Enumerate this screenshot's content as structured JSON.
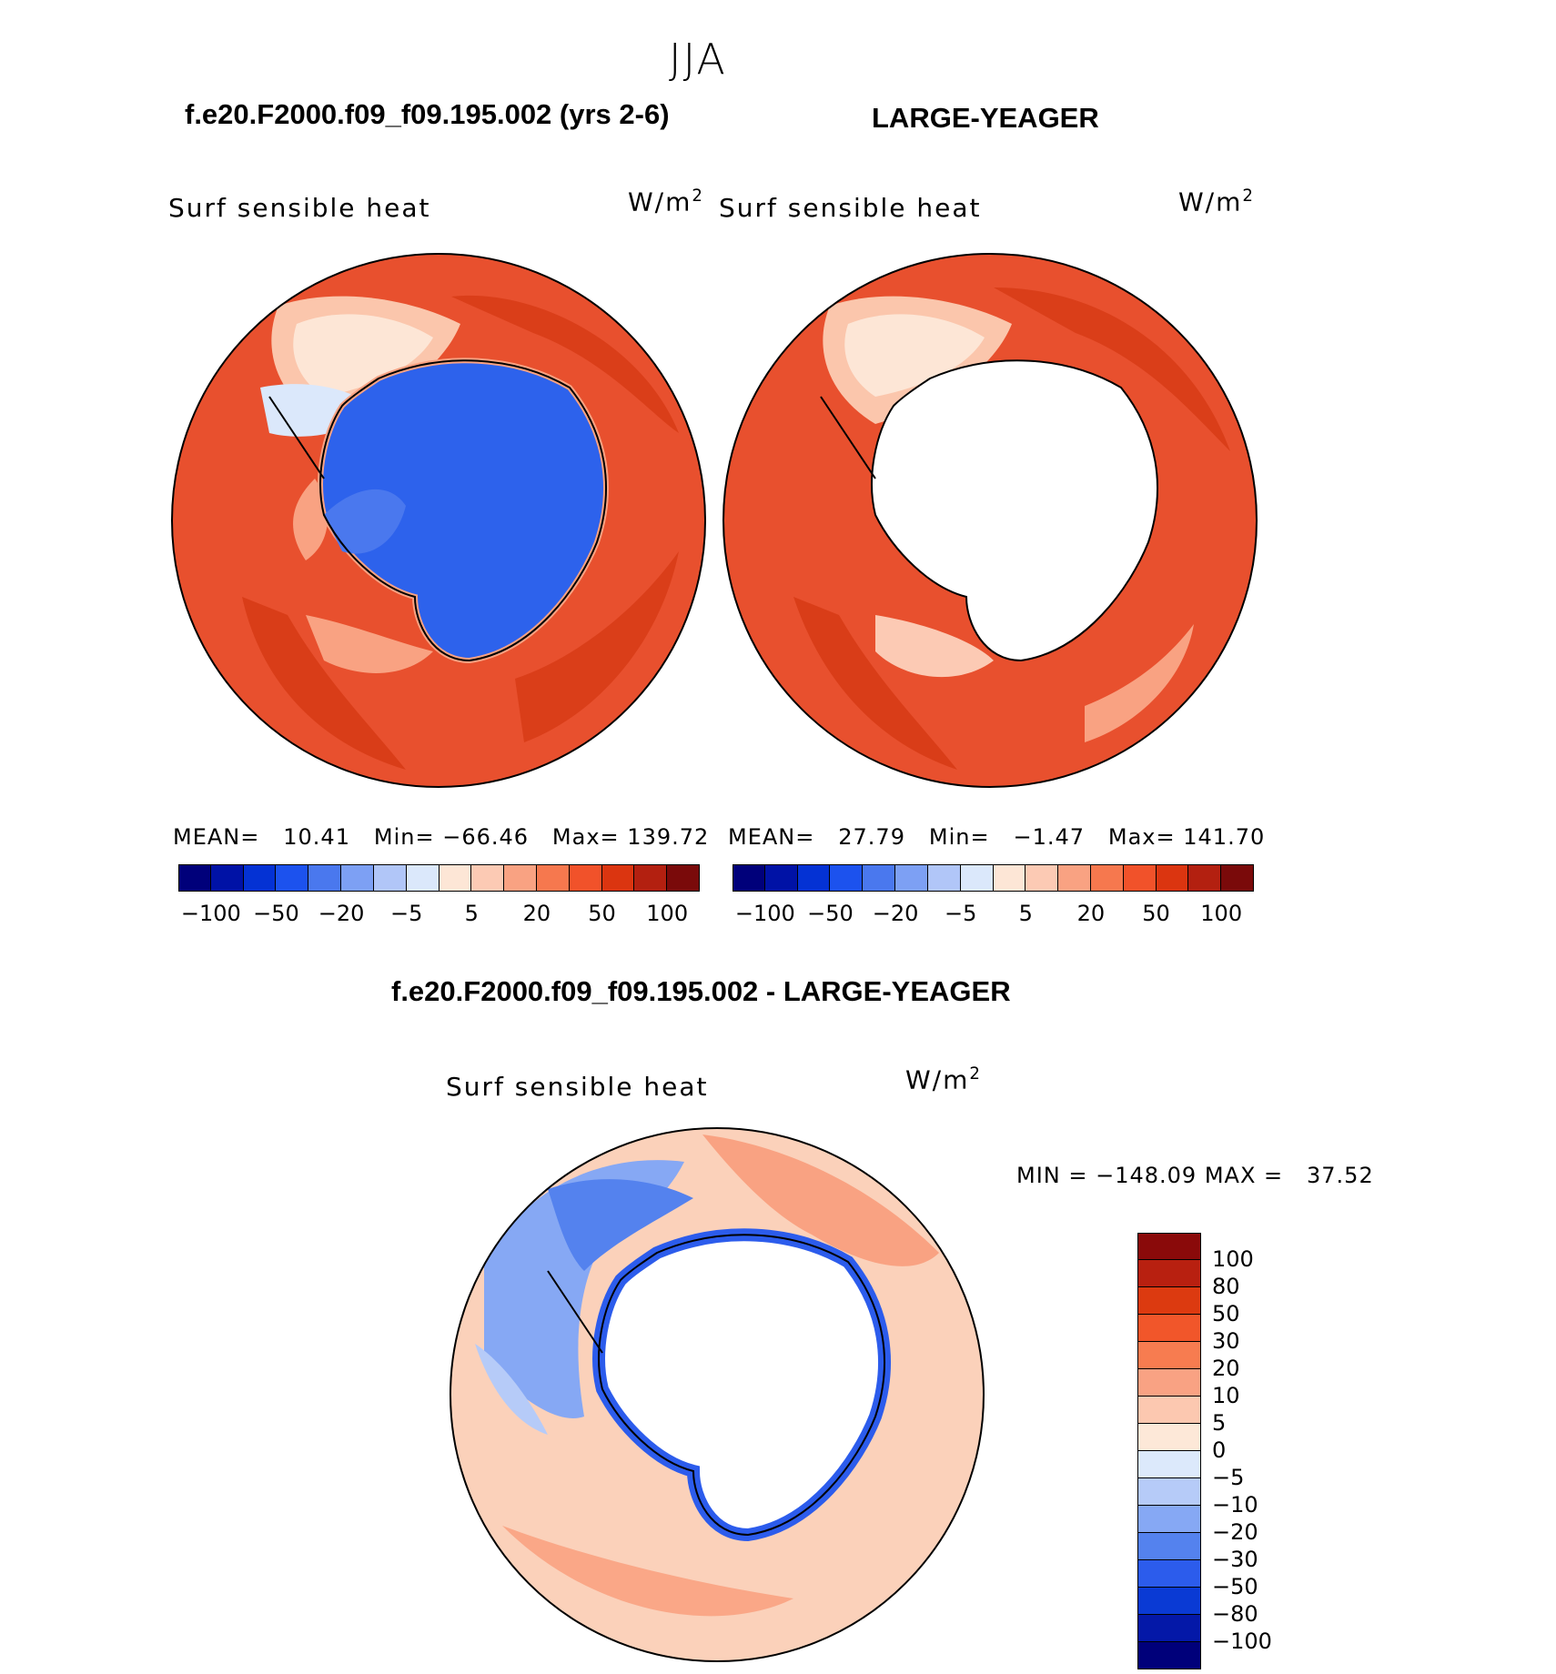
{
  "title": "JJA",
  "panels": [
    {
      "case": "f.e20.F2000.f09_f09.195.002 (yrs 2-6)",
      "variable": "Surf sensible heat",
      "units_base": "W/m",
      "units_exp": "2",
      "stats": {
        "mean_label": "MEAN=",
        "mean": "10.41",
        "min_label": "Min=",
        "min": "−66.46",
        "max_label": "Max=",
        "max": "139.72"
      },
      "land": "low",
      "colors": {
        "ocean": "#e8502e",
        "land": "#2d62ec"
      }
    },
    {
      "case": "LARGE-YEAGER",
      "variable": "Surf sensible heat",
      "units_base": "W/m",
      "units_exp": "2",
      "stats": {
        "mean_label": "MEAN=",
        "mean": "27.79",
        "min_label": "Min=",
        "min": "−1.47",
        "max_label": "Max=",
        "max": "141.70"
      },
      "land": "missing",
      "colors": {
        "ocean": "#e8502e",
        "land": "#ffffff"
      }
    }
  ],
  "colorbar_abs": {
    "colors": [
      "#00007a",
      "#0012a6",
      "#0432d4",
      "#1c52ee",
      "#4a78ee",
      "#7da0f4",
      "#b1c6f8",
      "#dbe8fb",
      "#fde6d6",
      "#fccab4",
      "#f9a282",
      "#f6784e",
      "#f1522a",
      "#db3510",
      "#b32010",
      "#7a0a0a"
    ],
    "ticks": [
      "−100",
      "−50",
      "−20",
      "−5",
      "5",
      "20",
      "50",
      "100"
    ]
  },
  "diff": {
    "title": "f.e20.F2000.f09_f09.195.002 - LARGE-YEAGER",
    "variable": "Surf sensible heat",
    "units_base": "W/m",
    "units_exp": "2",
    "minmax": "MIN = −148.09 MAX =   37.52",
    "colorbar": {
      "colors": [
        "#8a0a0a",
        "#b82010",
        "#dc3a10",
        "#f1562a",
        "#f77c50",
        "#f9a283",
        "#fcc8b0",
        "#fde8d8",
        "#dce9fb",
        "#b6cbf8",
        "#86a8f4",
        "#5482ee",
        "#2c5cec",
        "#0a3ad4",
        "#0418a8",
        "#00007a"
      ],
      "ticks": [
        "100",
        "80",
        "50",
        "30",
        "20",
        "10",
        "5",
        "0",
        "−5",
        "−10",
        "−20",
        "−30",
        "−50",
        "−80",
        "−100"
      ]
    },
    "colors": {
      "ocean": "#fbd1ba",
      "land": "#ffffff",
      "negative": "#86a8f4"
    }
  }
}
